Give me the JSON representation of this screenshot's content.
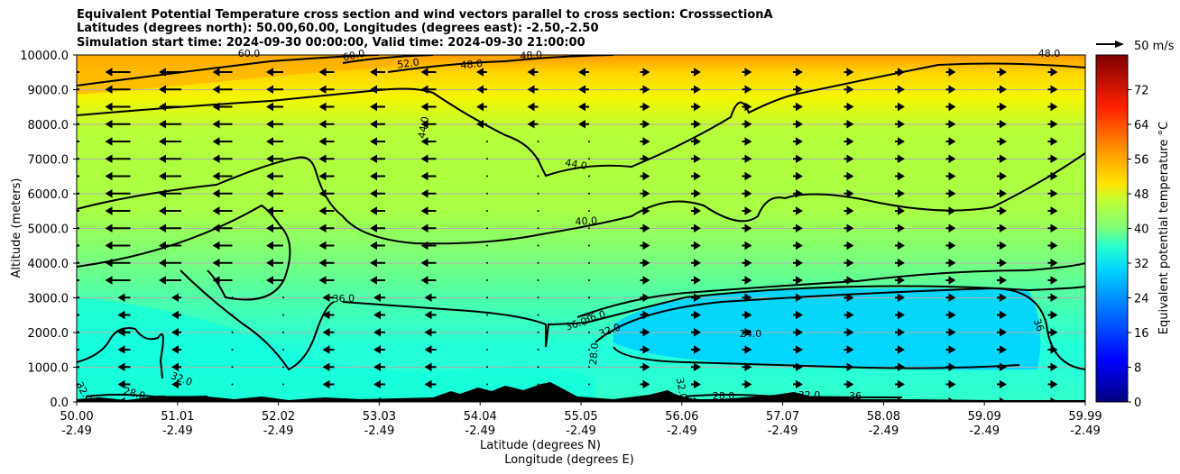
{
  "chart_data": {
    "type": "heatmap",
    "title_lines": [
      "Equivalent Potential Temperature cross section and wind vectors parallel to cross section: CrosssectionA",
      "Latitudes (degrees north): 50.00,60.00, Longitudes (degrees east): -2.50,-2.50",
      "Simulation start time: 2024-09-30 00:00:00, Valid time: 2024-09-30 21:00:00"
    ],
    "ylabel": "Altitude (meters)",
    "xlabel_lat": "Latitude (degrees N)",
    "xlabel_lon": "Longitude (degrees E)",
    "ylim": [
      0,
      10000
    ],
    "y_ticks": [
      "0.0",
      "1000.0",
      "2000.0",
      "3000.0",
      "4000.0",
      "5000.0",
      "6000.0",
      "7000.0",
      "8000.0",
      "9000.0",
      "10000.0"
    ],
    "x_ticks_lat": [
      "50.00",
      "51.01",
      "52.02",
      "53.03",
      "54.04",
      "55.05",
      "56.06",
      "57.07",
      "58.08",
      "59.09",
      "59.99"
    ],
    "x_ticks_lon": [
      "-2.49",
      "-2.49",
      "-2.49",
      "-2.49",
      "-2.49",
      "-2.49",
      "-2.49",
      "-2.49",
      "-2.49",
      "-2.49",
      "-2.49"
    ],
    "colorbar": {
      "label": "Equivalent potential temperature °C",
      "range": [
        0,
        80
      ],
      "ticks": [
        "0",
        "8",
        "16",
        "24",
        "32",
        "40",
        "48",
        "56",
        "64",
        "72"
      ]
    },
    "quiver_key": "50 m/s",
    "contour_labels": [
      "60.0",
      "60.0",
      "52.0",
      "48.0",
      "48.0",
      "48.0",
      "44.0",
      "44.0",
      "40.0",
      "36.0",
      "36.0",
      "36.0",
      "32.0",
      "28.0",
      "24.0",
      "32.0",
      "32.0",
      "28.0",
      "32.0",
      "36",
      "36",
      "32.0",
      "28.0"
    ]
  }
}
